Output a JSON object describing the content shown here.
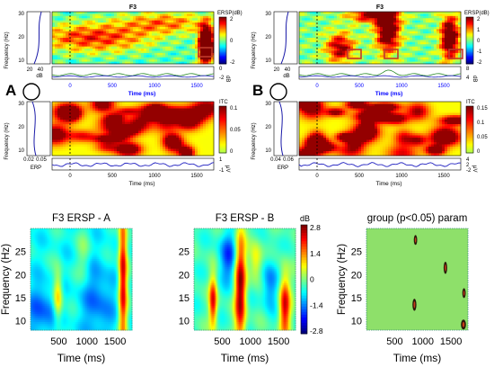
{
  "panel_letters": [
    "A",
    "B"
  ],
  "top_panels": [
    {
      "letter": "A",
      "title": "F3",
      "ersp_ylabel": "Frequency (Hz)",
      "ersp_yticks": [
        "30",
        "20",
        "10"
      ],
      "ersp_cbar_label": "ERSP(dB)",
      "ersp_cbar_ticks": [
        "2",
        "0",
        "-2"
      ],
      "side_ticks": [
        "20",
        "40"
      ],
      "side_unit": "dB",
      "trace_ticks": [
        "0",
        "-2"
      ],
      "trace_unit": "dB",
      "time_label": "Time (ms)",
      "time_ticks_upper": [
        "0",
        "500",
        "1000",
        "1500"
      ],
      "itc_ylabel": "Frequency (Hz)",
      "itc_yticks": [
        "30",
        "20",
        "10"
      ],
      "itc_cbar_label": "ITC",
      "itc_cbar_ticks": [
        "0.1",
        "0.05",
        "0"
      ],
      "itc_side_ticks": [
        "0.02",
        "0.05"
      ],
      "erp_label": "ERP",
      "erp_ticks": [
        "1",
        "-1"
      ],
      "erp_unit": "μV",
      "time_ticks_lower": [
        "0",
        "500",
        "1000",
        "1500"
      ],
      "time_label_lower": "Time (ms)"
    },
    {
      "letter": "B",
      "title": "F3",
      "ersp_ylabel": "Frequency (Hz)",
      "ersp_yticks": [
        "30",
        "20",
        "10"
      ],
      "ersp_cbar_label": "ERSP(dB)",
      "ersp_cbar_ticks": [
        "2",
        "1",
        "0",
        "-1",
        "-2"
      ],
      "side_ticks": [
        "20",
        "40"
      ],
      "side_unit": "dB",
      "trace_ticks": [
        "8",
        "4"
      ],
      "trace_unit": "dB",
      "time_label": "Time (ms)",
      "time_ticks_upper": [
        "0",
        "500",
        "1000",
        "1500"
      ],
      "itc_ylabel": "Frequency (Hz)",
      "itc_yticks": [
        "30",
        "20",
        "10"
      ],
      "itc_cbar_label": "ITC",
      "itc_cbar_ticks": [
        "0.15",
        "0.1",
        "0.05",
        "0"
      ],
      "itc_side_ticks": [
        "0.04",
        "0.06"
      ],
      "erp_label": "ERP",
      "erp_ticks": [
        "4",
        "2",
        "-2"
      ],
      "erp_unit": "μV",
      "time_ticks_lower": [
        "0",
        "500",
        "1000",
        "1500"
      ],
      "time_label_lower": "Time (ms)"
    }
  ],
  "bottom_panels": [
    {
      "title": "F3 ERSP - A",
      "ylabel": "Frequency (Hz)",
      "yticks": [
        "25",
        "20",
        "15",
        "10"
      ],
      "xlabel": "Time (ms)",
      "xticks": [
        "500",
        "1000",
        "1500"
      ]
    },
    {
      "title": "F3 ERSP - B",
      "ylabel": "",
      "yticks": [
        "25",
        "20",
        "15",
        "10"
      ],
      "xlabel": "Time (ms)",
      "xticks": [
        "500",
        "1000",
        "1500"
      ],
      "cbar_label": "dB",
      "cbar_ticks": [
        "2.8",
        "1.4",
        "0",
        "-1.4",
        "-2.8"
      ]
    },
    {
      "title": "group (p<0.05) param",
      "ylabel": "Frequency (Hz)",
      "yticks": [
        "25",
        "20",
        "15",
        "10"
      ],
      "xlabel": "Time (ms)",
      "xticks": [
        "500",
        "1000",
        "1500"
      ]
    }
  ],
  "colors": {
    "jet_low": "#00008f",
    "jet_high": "#800000",
    "mask_green": "#8ee06a",
    "highlight_box": "#c0392b",
    "trace_blue": "#2020c0",
    "trace_green": "#2a8a2a"
  },
  "chart_data": [
    {
      "type": "heatmap",
      "title": "F3 ERSP - A",
      "xlabel": "Time (ms)",
      "ylabel": "Frequency (Hz)",
      "xlim": [
        0,
        1800
      ],
      "ylim": [
        8,
        30
      ],
      "colorbar": {
        "label": "",
        "range": [
          -2.8,
          2.8
        ]
      },
      "blobs": [
        {
          "t": 1650,
          "f": 20,
          "st": 55,
          "sf": 12,
          "amp": 3.0
        },
        {
          "t": 480,
          "f": 15,
          "st": 60,
          "sf": 4,
          "amp": 1.8
        },
        {
          "t": 950,
          "f": 24,
          "st": 90,
          "sf": 4,
          "amp": 0.6
        },
        {
          "t": 200,
          "f": 12,
          "st": 200,
          "sf": 4,
          "amp": -1.0
        },
        {
          "t": 1200,
          "f": 14,
          "st": 200,
          "sf": 6,
          "amp": -0.9
        }
      ],
      "base": -0.6
    },
    {
      "type": "heatmap",
      "title": "F3 ERSP - B",
      "xlabel": "Time (ms)",
      "ylabel": "",
      "xlim": [
        0,
        1800
      ],
      "ylim": [
        8,
        30
      ],
      "colorbar": {
        "label": "dB",
        "range": [
          -2.8,
          2.8
        ]
      },
      "blobs": [
        {
          "t": 820,
          "f": 17,
          "st": 70,
          "sf": 9,
          "amp": 3.0
        },
        {
          "t": 330,
          "f": 14,
          "st": 50,
          "sf": 4,
          "amp": 2.4
        },
        {
          "t": 1620,
          "f": 13,
          "st": 70,
          "sf": 5,
          "amp": 2.6
        },
        {
          "t": 1100,
          "f": 23,
          "st": 80,
          "sf": 3,
          "amp": 1.2
        },
        {
          "t": 600,
          "f": 24,
          "st": 120,
          "sf": 4,
          "amp": -1.4
        },
        {
          "t": 1350,
          "f": 18,
          "st": 100,
          "sf": 4,
          "amp": -1.2
        }
      ],
      "base": -0.3
    },
    {
      "type": "heatmap",
      "title": "group (p<0.05) param",
      "xlabel": "Time (ms)",
      "ylabel": "Frequency (Hz)",
      "xlim": [
        0,
        1800
      ],
      "ylim": [
        8,
        30
      ],
      "significant_regions": [
        {
          "t": 870,
          "f": 27.5,
          "dt": 40,
          "df": 1.5
        },
        {
          "t": 1400,
          "f": 21.5,
          "dt": 45,
          "df": 2
        },
        {
          "t": 850,
          "f": 13.5,
          "dt": 50,
          "df": 2
        },
        {
          "t": 1730,
          "f": 16,
          "dt": 40,
          "df": 1.5
        },
        {
          "t": 1720,
          "f": 9.2,
          "dt": 70,
          "df": 1.5
        }
      ]
    }
  ]
}
